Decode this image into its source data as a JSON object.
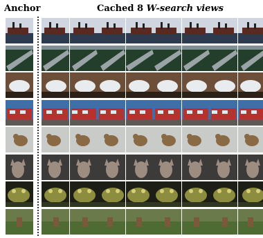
{
  "header": {
    "anchor_label": "Anchor",
    "views_prefix": "Cached 8 ",
    "views_symbol": "W",
    "views_suffix": "-search views"
  },
  "rows": [
    {
      "subject": "ship",
      "colors": {
        "sky": "#cfd6df",
        "ground": "#2d3b4f",
        "subject": "#5a2a22"
      }
    },
    {
      "subject": "airplane-wing",
      "colors": {
        "sky": "#7f8f93",
        "ground": "#233f2b",
        "subject": "#9aa3a6"
      }
    },
    {
      "subject": "white-vehicle",
      "colors": {
        "sky": "#6d4e38",
        "ground": "#2c2117",
        "subject": "#e8ecef"
      }
    },
    {
      "subject": "fire-truck",
      "colors": {
        "sky": "#3f6fa8",
        "ground": "#5d5a55",
        "subject": "#b5332c"
      }
    },
    {
      "subject": "bird",
      "colors": {
        "sky": "#c9cbc8",
        "ground": "#b5b3ad",
        "subject": "#8a6a45"
      }
    },
    {
      "subject": "deer-head",
      "colors": {
        "sky": "#3d3a3a",
        "ground": "#55504b",
        "subject": "#9d8c80"
      }
    },
    {
      "subject": "frog",
      "colors": {
        "sky": "#1d1f16",
        "ground": "#30371f",
        "subject": "#8d8d3f"
      }
    },
    {
      "subject": "deer-in-grass",
      "colors": {
        "sky": "#6a7a4a",
        "ground": "#4d6b33",
        "subject": "#7a5a3a"
      }
    }
  ]
}
